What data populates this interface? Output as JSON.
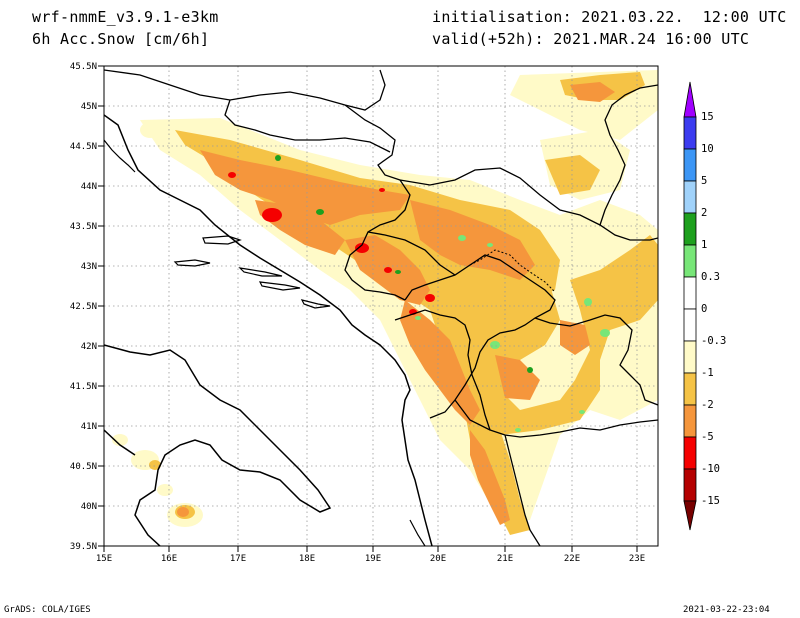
{
  "header": {
    "model": "wrf-nmmE_v3.9.1-e3km",
    "field": "6h Acc.Snow [cm/6h]",
    "initialisation": "initialisation: 2021.03.22.  12:00 UTC",
    "valid": "valid(+52h): 2021.MAR.24 16:00 UTC"
  },
  "footer": {
    "left": "GrADS: COLA/IGES",
    "right": "2021-03-22-23:04"
  },
  "map": {
    "lat_labels": [
      "45.5N",
      "45N",
      "44.5N",
      "44N",
      "43.5N",
      "43N",
      "42.5N",
      "42N",
      "41.5N",
      "41N",
      "40.5N",
      "40N",
      "39.5N"
    ],
    "lon_labels": [
      "15E",
      "16E",
      "17E",
      "18E",
      "19E",
      "20E",
      "21E",
      "22E",
      "23E"
    ],
    "grid": "dotted"
  },
  "legend": {
    "levels": [
      {
        "label": "15",
        "color": "#8c28dc"
      },
      {
        "label": "10",
        "color": "#3c3cf0"
      },
      {
        "label": "5",
        "color": "#3c96f5"
      },
      {
        "label": "2",
        "color": "#a0d2fa"
      },
      {
        "label": "1",
        "color": "#1ea01e"
      },
      {
        "label": "0.3",
        "color": "#78e678"
      },
      {
        "label": "0",
        "color": "#ffffff"
      },
      {
        "label": "-0.3",
        "color": "#ffffff"
      },
      {
        "label": "-1",
        "color": "#fffac8"
      },
      {
        "label": "-2",
        "color": "#f5c346"
      },
      {
        "label": "-5",
        "color": "#f5963c"
      },
      {
        "label": "-10",
        "color": "#f50000"
      },
      {
        "label": "-15",
        "color": "#b40000"
      }
    ],
    "bottom_tip_color": "#780000",
    "top_tip_color": "#a000ff"
  },
  "colors": {
    "very_light": "#fffac8",
    "light_orange": "#f5c346",
    "orange": "#f5963c",
    "red": "#f50000",
    "green": "#1ea01e",
    "light_green": "#78e678"
  }
}
